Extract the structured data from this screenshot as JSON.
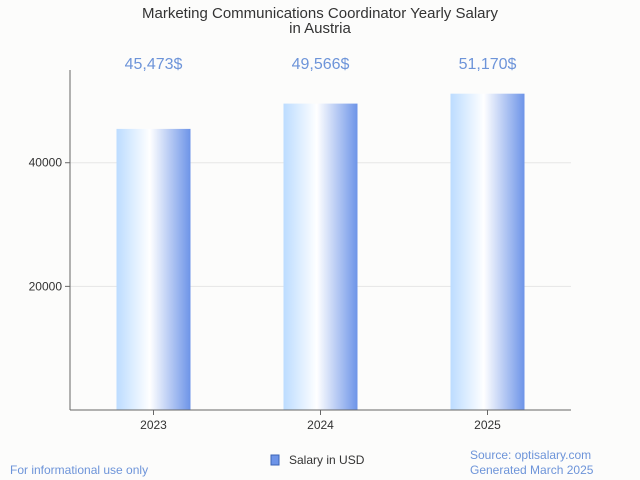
{
  "chart_data": {
    "type": "bar",
    "title_line1": "Marketing Communications Coordinator Yearly Salary",
    "title_line2": "in Austria",
    "categories": [
      "2023",
      "2024",
      "2025"
    ],
    "series": [
      {
        "name": "Salary in USD",
        "values": [
          45473,
          49566,
          51170
        ],
        "value_labels": [
          "45,473$",
          "49,566$",
          "51,170$"
        ]
      }
    ],
    "yticks": [
      20000,
      40000
    ],
    "ytick_labels": [
      "20000",
      "40000"
    ],
    "ylim": [
      0,
      55000
    ],
    "grid": true,
    "legend": "bottom-center",
    "colors": {
      "bar_edge": "#6d94e8",
      "bar_light": "#d4e9ff",
      "label": "#6d94d9"
    }
  },
  "footer": {
    "left": "For informational use only",
    "source": "Source: optisalary.com",
    "generated": "Generated March 2025"
  }
}
